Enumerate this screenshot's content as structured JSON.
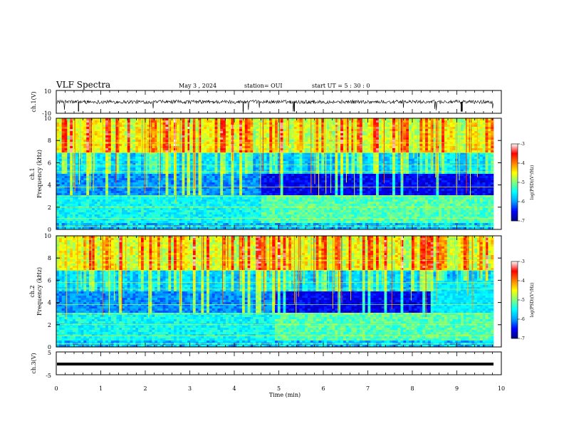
{
  "header": {
    "title": "VLF Spectra",
    "date": "May 3 , 2024",
    "station": "station= OUI",
    "start": "start UT = 5 : 30 : 0"
  },
  "chart_data": {
    "type": "heatmap",
    "x_axis": {
      "label": "Time (min)",
      "range": [
        0,
        10
      ],
      "ticks": [
        "0",
        "1",
        "2",
        "3",
        "4",
        "5",
        "6",
        "7",
        "8",
        "9",
        "10"
      ]
    },
    "panels": [
      {
        "name": "ch.1(V)",
        "type": "line",
        "ylabel": "ch.1(V)",
        "ylim": [
          -10,
          10
        ],
        "yticks": [
          "10",
          "-10"
        ],
        "baseline": 0
      },
      {
        "name": "ch.1 spectrogram",
        "type": "heatmap",
        "ylabel_top": "ch.1",
        "ylabel": "Frequency (kHz)",
        "ylim": [
          0,
          10
        ],
        "yticks": [
          "0",
          "2",
          "4",
          "6",
          "8",
          "10"
        ]
      },
      {
        "name": "ch.2 spectrogram",
        "type": "heatmap",
        "ylabel_top": "ch.2",
        "ylabel": "Frequency (kHz)",
        "ylim": [
          0,
          10
        ],
        "yticks": [
          "0",
          "2",
          "4",
          "6",
          "8",
          "10"
        ]
      },
      {
        "name": "ch.3(V)",
        "type": "line",
        "ylabel": "ch.3(V)",
        "ylim": [
          -5,
          5
        ],
        "yticks": [
          "5",
          "-5"
        ],
        "baseline": -1
      }
    ],
    "colorbar": {
      "label": "log(PSD)(V²/Hz)",
      "range": [
        -7,
        -3
      ],
      "ticks": [
        "-3",
        "-4",
        "-5",
        "-6",
        "-7"
      ],
      "colors": [
        "#000080",
        "#0000ff",
        "#00a0ff",
        "#00ffff",
        "#80ff80",
        "#ffff00",
        "#ff8000",
        "#ff0000",
        "#ffffff"
      ]
    }
  }
}
